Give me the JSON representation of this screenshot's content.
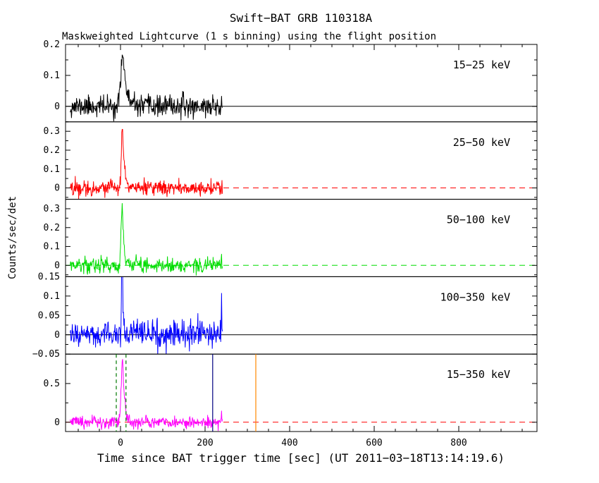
{
  "title": "Swift−BAT GRB 110318A",
  "subtitle": "Maskweighted Lightcurve (1 s binning) using the flight position",
  "xlabel": "Time since BAT trigger time [sec] (UT 2011−03−18T13:14:19.6)",
  "ylabel": "Counts/sec/det",
  "chart_data": {
    "type": "line",
    "x_range": [
      -130,
      985
    ],
    "x_major_ticks": [
      0,
      200,
      400,
      600,
      800
    ],
    "x_minor_step": 50,
    "data_span": [
      -119,
      241
    ],
    "grid": false,
    "legend_position": "inside-right-per-panel",
    "panels": [
      {
        "label": "15−25 keV",
        "color": "#000000",
        "ylim": [
          -0.05,
          0.2
        ],
        "yticks": [
          0,
          0.1,
          0.2
        ],
        "noise_sigma": 0.017,
        "peak_amplitude": 0.185,
        "peak_time": 6,
        "rise_sigma": 4.5,
        "decay_tau": 6.5,
        "end_spike": 0,
        "zero_line": {
          "color": "#000000",
          "dashed": false
        },
        "seed": 11
      },
      {
        "label": "25−50 keV",
        "color": "#ff0000",
        "ylim": [
          -0.06,
          0.35
        ],
        "yticks": [
          0,
          0.1,
          0.2,
          0.3
        ],
        "noise_sigma": 0.02,
        "peak_amplitude": 0.33,
        "peak_time": 5,
        "rise_sigma": 3,
        "decay_tau": 4,
        "end_spike": 0,
        "zero_line": {
          "color": "#ff0000",
          "dashed": true
        },
        "seed": 22
      },
      {
        "label": "50−100 keV",
        "color": "#00dd00",
        "ylim": [
          -0.06,
          0.35
        ],
        "yticks": [
          0,
          0.1,
          0.2,
          0.3
        ],
        "noise_sigma": 0.021,
        "peak_amplitude": 0.34,
        "peak_time": 4,
        "rise_sigma": 2.5,
        "decay_tau": 3.5,
        "end_spike": 0.09,
        "zero_line": {
          "color": "#00dd00",
          "dashed": true
        },
        "seed": 33
      },
      {
        "label": "100−350 keV",
        "color": "#0000ff",
        "ylim": [
          -0.05,
          0.15
        ],
        "yticks": [
          -0.05,
          0,
          0.05,
          0.1,
          0.15
        ],
        "noise_sigma": 0.017,
        "peak_amplitude": 0.3,
        "peak_time": 4,
        "rise_sigma": 1.3,
        "decay_tau": 1.6,
        "end_spike": 0.1,
        "zero_line": {
          "color": "#000000",
          "dashed": false
        },
        "seed": 44
      },
      {
        "label": "15−350 keV",
        "color": "#ff00ff",
        "ylim": [
          -0.12,
          0.88
        ],
        "yticks": [
          0,
          0.5
        ],
        "noise_sigma": 0.04,
        "peak_amplitude": 0.85,
        "peak_time": 5,
        "rise_sigma": 3,
        "decay_tau": 4.5,
        "end_spike": 0.13,
        "zero_line": {
          "color": "#ff0000",
          "dashed": true
        },
        "seed": 55
      }
    ],
    "markers": {
      "vlines": [
        {
          "t": -10,
          "color": "#007700",
          "dashed": true,
          "panel": 4
        },
        {
          "t": 13,
          "color": "#007700",
          "dashed": true,
          "panel": 4
        },
        {
          "t": 218,
          "color": "#000080",
          "dashed": false,
          "panel": 4
        },
        {
          "t": 320,
          "color": "#ff8800",
          "dashed": false,
          "panel": 4
        }
      ]
    }
  }
}
